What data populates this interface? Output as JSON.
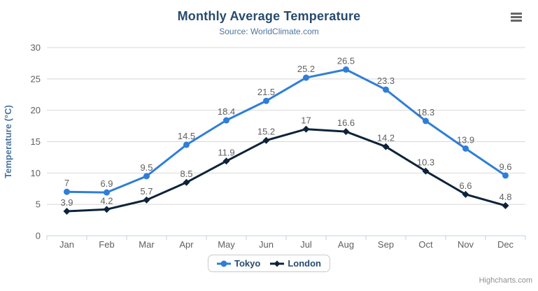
{
  "chart_data": {
    "type": "line",
    "title": "Monthly Average Temperature",
    "subtitle": "Source: WorldClimate.com",
    "categories": [
      "Jan",
      "Feb",
      "Mar",
      "Apr",
      "May",
      "Jun",
      "Jul",
      "Aug",
      "Sep",
      "Oct",
      "Nov",
      "Dec"
    ],
    "series": [
      {
        "name": "Tokyo",
        "color": "#2f7ed8",
        "marker": "circle",
        "values": [
          7,
          6.9,
          9.5,
          14.5,
          18.4,
          21.5,
          25.2,
          26.5,
          23.3,
          18.3,
          13.9,
          9.6
        ]
      },
      {
        "name": "London",
        "color": "#0d233a",
        "marker": "diamond",
        "values": [
          3.9,
          4.2,
          5.7,
          8.5,
          11.9,
          15.2,
          17,
          16.6,
          14.2,
          10.3,
          6.6,
          4.8
        ]
      }
    ],
    "xlabel": "",
    "ylabel": "Temperature (°C)",
    "ylim": [
      0,
      30
    ],
    "ytick_step": 5,
    "yticks": [
      0,
      5,
      10,
      15,
      20,
      25,
      30
    ],
    "grid": true,
    "data_labels": true,
    "legend_position": "bottom-center"
  },
  "credits": {
    "label": "Highcharts.com"
  },
  "menu": {
    "icon": "hamburger-icon"
  },
  "colors": {
    "title": "#274b6d",
    "subtitle": "#4d759e",
    "axis_title": "#4d759e",
    "tick_label": "#606060",
    "data_label": "#606060",
    "grid_line": "#d8d8d8",
    "axis_line": "#c0d0e0",
    "legend_text": "#274b6d",
    "credits": "#909090",
    "menu_icon": "#666666",
    "background": "#ffffff"
  }
}
